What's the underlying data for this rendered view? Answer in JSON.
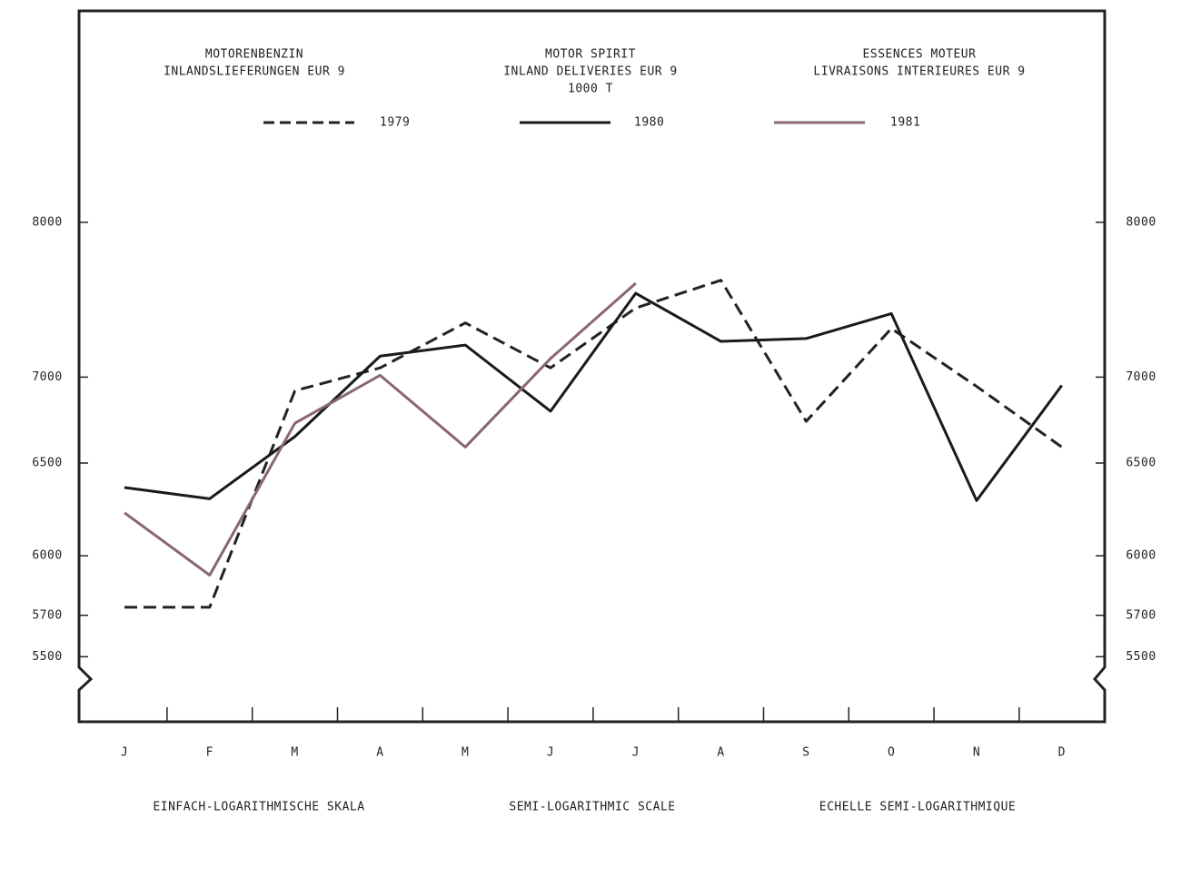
{
  "chart_data": {
    "type": "line",
    "title_de": [
      "MOTORENBENZIN",
      "INLANDSLIEFERUNGEN EUR 9"
    ],
    "title_en": [
      "MOTOR SPIRIT",
      "INLAND DELIVERIES EUR 9",
      "1000 T"
    ],
    "title_fr": [
      "ESSENCES MOTEUR",
      "LIVRAISONS INTERIEURES EUR 9"
    ],
    "scale_labels": [
      "EINFACH-LOGARITHMISCHE SKALA",
      "SEMI-LOGARITHMIC SCALE",
      "ECHELLE SEMI-LOGARITHMIQUE"
    ],
    "categories": [
      "J",
      "F",
      "M",
      "A",
      "M",
      "J",
      "J",
      "A",
      "S",
      "O",
      "N",
      "D"
    ],
    "log_scale": true,
    "ylim": [
      5200,
      9600
    ],
    "yticks": [
      5500,
      5700,
      6000,
      6500,
      7000,
      8000
    ],
    "series": [
      {
        "name": "1979",
        "color": "#222222",
        "line_style": "dashed",
        "values": [
          5740,
          5740,
          6918,
          7056,
          7335,
          7056,
          7430,
          7610,
          6738,
          7300,
          6944,
          6590
        ]
      },
      {
        "name": "1980",
        "color": "#1a1a1a",
        "line_style": "solid",
        "values": [
          6364,
          6303,
          6650,
          7128,
          7196,
          6797,
          7525,
          7219,
          7237,
          7394,
          6293,
          6950
        ]
      },
      {
        "name": "1981",
        "color": "#8a6670",
        "line_style": "solid",
        "values": [
          6227,
          5901,
          6727,
          7011,
          6590,
          7113,
          7590,
          null,
          null,
          null,
          null,
          null
        ]
      }
    ]
  }
}
